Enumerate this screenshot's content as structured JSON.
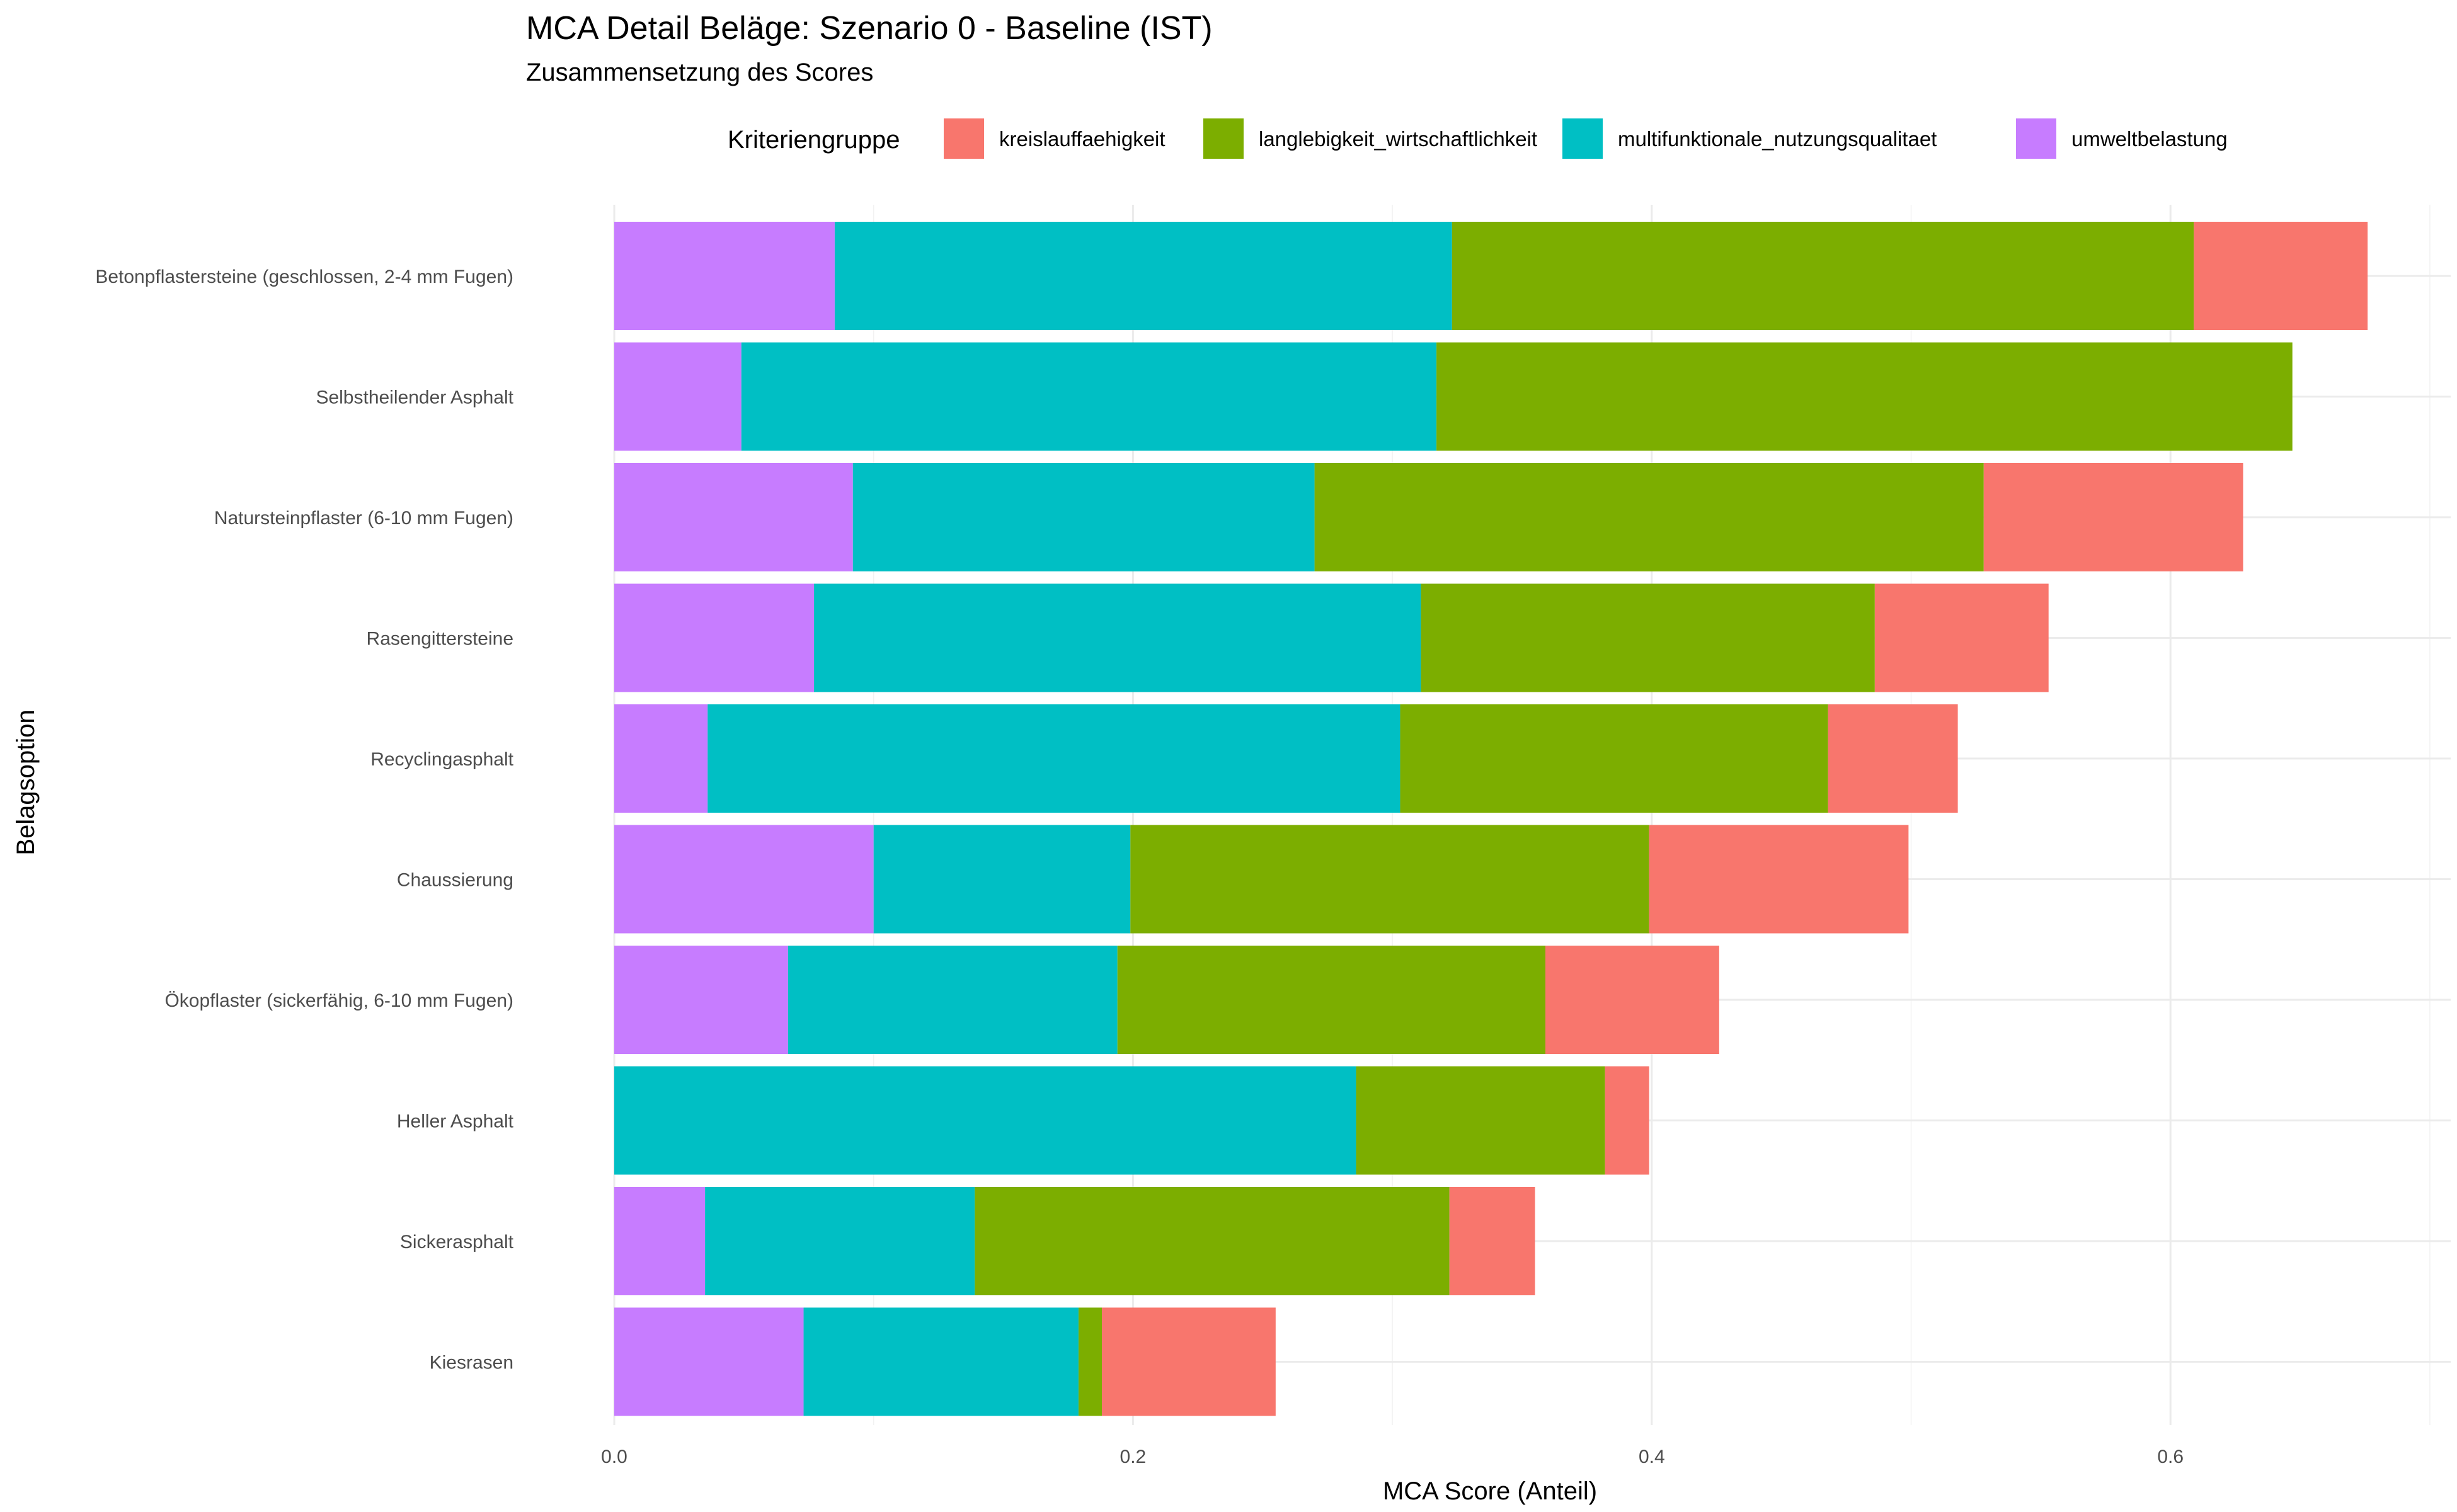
{
  "chart_data": {
    "type": "bar",
    "orientation": "horizontal",
    "stacked": true,
    "title": "MCA Detail Beläge: Szenario 0 - Baseline (IST)",
    "subtitle": "Zusammensetzung des Scores",
    "xlabel": "MCA Score (Anteil)",
    "ylabel": "Belagsoption",
    "xlim": [
      0,
      0.7
    ],
    "xticks": [
      0,
      0.2,
      0.4,
      0.6
    ],
    "xtick_labels": [
      "0.0",
      "0.2",
      "0.4",
      "0.6"
    ],
    "grid": true,
    "legend": {
      "title": "Kriteriengruppe",
      "position": "top"
    },
    "categories": [
      "Betonpflastersteine (geschlossen, 2-4 mm Fugen)",
      "Selbstheilender Asphalt",
      "Natursteinpflaster (6-10 mm Fugen)",
      "Rasengittersteine",
      "Recyclingasphalt",
      "Chaussierung",
      "Ökopflaster (sickerfähig, 6-10 mm Fugen)",
      "Heller Asphalt",
      "Sickerasphalt",
      "Kiesrasen"
    ],
    "stack_order": [
      "umweltbelastung",
      "multifunktionale_nutzungsqualitaet",
      "langlebigkeit_wirtschaftlichkeit",
      "kreislauffaehigkeit"
    ],
    "series": [
      {
        "name": "kreislauffaehigkeit",
        "color": "#F8766D",
        "values": [
          0.067,
          0.0,
          0.1,
          0.067,
          0.05,
          0.1,
          0.067,
          0.017,
          0.033,
          0.067
        ]
      },
      {
        "name": "langlebigkeit_wirtschaftlichkeit",
        "color": "#7CAE00",
        "values": [
          0.286,
          0.33,
          0.258,
          0.175,
          0.165,
          0.2,
          0.165,
          0.096,
          0.183,
          0.009
        ]
      },
      {
        "name": "multifunktionale_nutzungsqualitaet",
        "color": "#00BFC4",
        "values": [
          0.238,
          0.268,
          0.178,
          0.234,
          0.267,
          0.099,
          0.127,
          0.286,
          0.104,
          0.106
        ]
      },
      {
        "name": "umweltbelastung",
        "color": "#C77CFF",
        "values": [
          0.085,
          0.049,
          0.092,
          0.077,
          0.036,
          0.1,
          0.067,
          0.0,
          0.035,
          0.073
        ]
      }
    ]
  }
}
